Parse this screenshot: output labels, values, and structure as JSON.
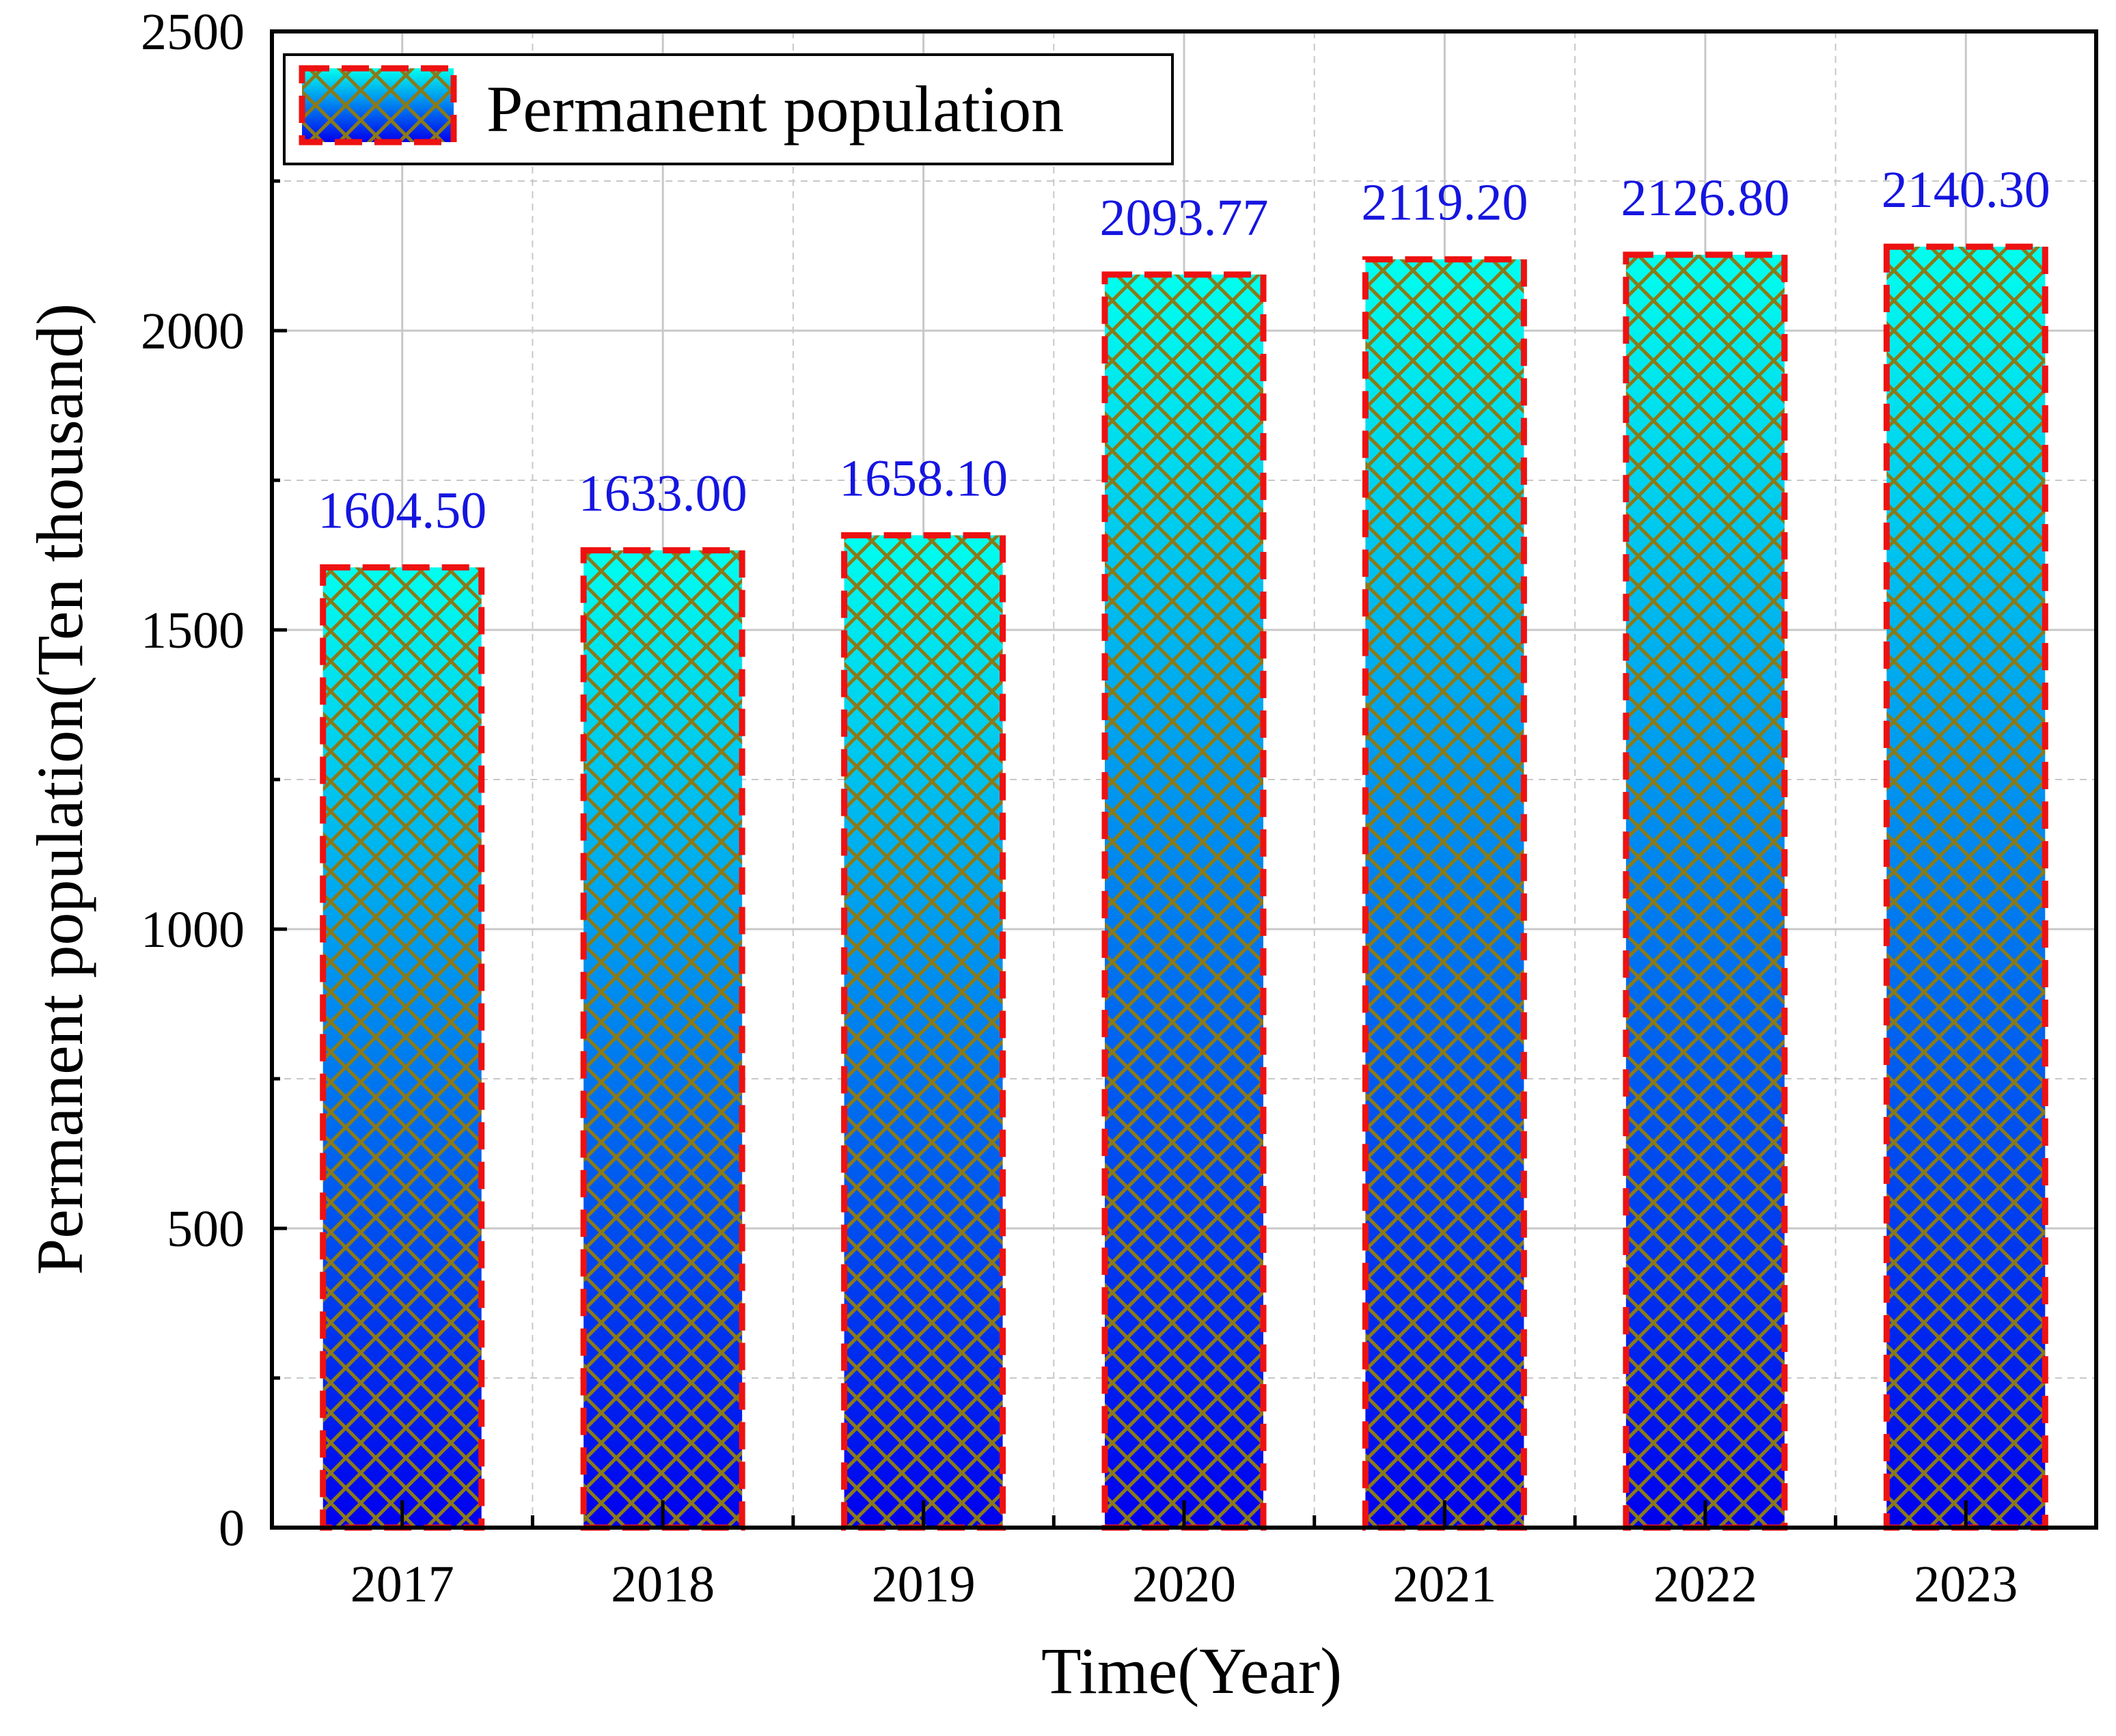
{
  "chart_data": {
    "type": "bar",
    "categories": [
      "2017",
      "2018",
      "2019",
      "2020",
      "2021",
      "2022",
      "2023"
    ],
    "series": [
      {
        "name": "Permanent population",
        "values": [
          1604.5,
          1633.0,
          1658.1,
          2093.77,
          2119.2,
          2126.8,
          2140.3
        ],
        "labels": [
          "1604.50",
          "1633.00",
          "1658.10",
          "2093.77",
          "2119.20",
          "2126.80",
          "2140.30"
        ]
      }
    ],
    "xlabel": "Time(Year)",
    "ylabel": "Permanent population(Ten thousand)",
    "ylim": [
      0,
      2500
    ],
    "yticks": [
      0,
      500,
      1000,
      1500,
      2000,
      2500
    ],
    "ytick_labels": [
      "0",
      "500",
      "1000",
      "1500",
      "2000",
      "2500"
    ],
    "grid": true,
    "legend": {
      "position": "top-left",
      "label": "Permanent population"
    }
  },
  "colors": {
    "bar_top": "#00ffee",
    "bar_bottom": "#0000ee",
    "hatch": "#8a7a18",
    "bar_border": "#ee1111",
    "data_label": "#1515e0",
    "grid": "#c8c8c8",
    "axis": "#000000"
  }
}
